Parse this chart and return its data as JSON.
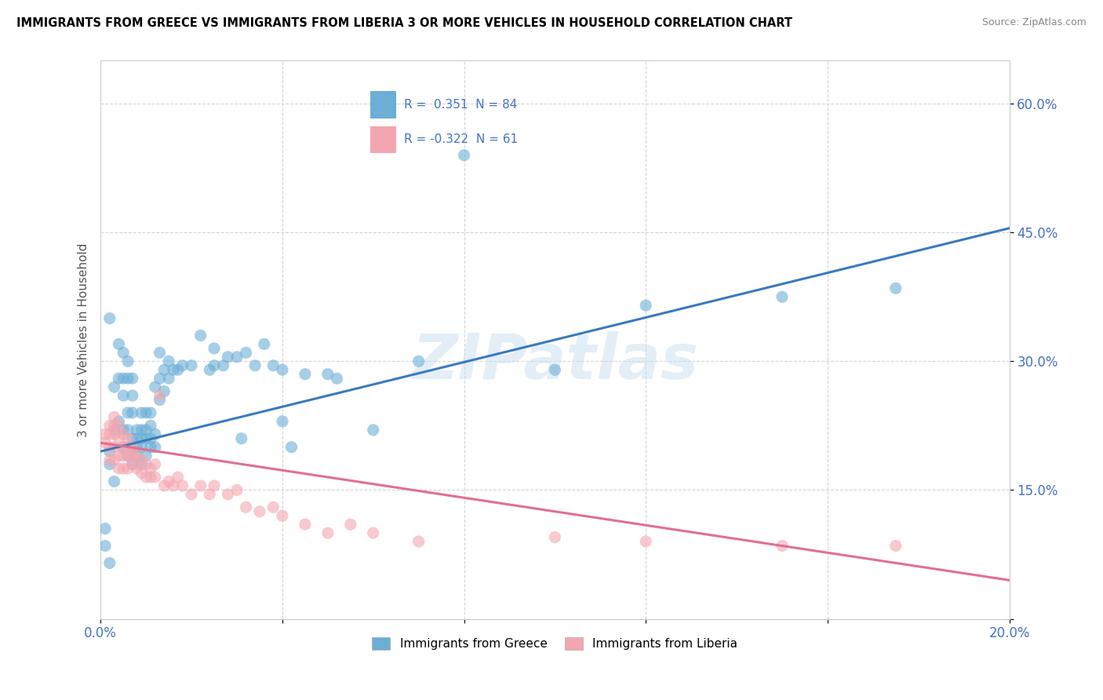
{
  "title": "IMMIGRANTS FROM GREECE VS IMMIGRANTS FROM LIBERIA 3 OR MORE VEHICLES IN HOUSEHOLD CORRELATION CHART",
  "source": "Source: ZipAtlas.com",
  "ylabel": "3 or more Vehicles in Household",
  "xlim": [
    0.0,
    0.2
  ],
  "ylim": [
    0.0,
    0.65
  ],
  "xticks": [
    0.0,
    0.04,
    0.08,
    0.12,
    0.16,
    0.2
  ],
  "xtick_labels": [
    "0.0%",
    "",
    "",
    "",
    "",
    "20.0%"
  ],
  "yticks": [
    0.0,
    0.15,
    0.3,
    0.45,
    0.6
  ],
  "ytick_labels": [
    "",
    "15.0%",
    "30.0%",
    "45.0%",
    "60.0%"
  ],
  "greece_color": "#6baed6",
  "liberia_color": "#f4a6b0",
  "greece_line_color": "#3a7abf",
  "liberia_line_color": "#e07090",
  "R_greece": 0.351,
  "N_greece": 84,
  "R_liberia": -0.322,
  "N_liberia": 61,
  "legend_label_greece": "Immigrants from Greece",
  "legend_label_liberia": "Immigrants from Liberia",
  "watermark": "ZIPatlas",
  "greece_line": [
    0.0,
    0.195,
    0.2,
    0.455
  ],
  "liberia_line": [
    0.0,
    0.205,
    0.2,
    0.045
  ],
  "greece_scatter": [
    [
      0.001,
      0.085
    ],
    [
      0.001,
      0.105
    ],
    [
      0.002,
      0.065
    ],
    [
      0.002,
      0.195
    ],
    [
      0.002,
      0.35
    ],
    [
      0.003,
      0.22
    ],
    [
      0.003,
      0.27
    ],
    [
      0.004,
      0.23
    ],
    [
      0.004,
      0.28
    ],
    [
      0.004,
      0.32
    ],
    [
      0.005,
      0.2
    ],
    [
      0.005,
      0.22
    ],
    [
      0.005,
      0.26
    ],
    [
      0.005,
      0.28
    ],
    [
      0.005,
      0.31
    ],
    [
      0.006,
      0.19
    ],
    [
      0.006,
      0.22
    ],
    [
      0.006,
      0.24
    ],
    [
      0.006,
      0.28
    ],
    [
      0.006,
      0.3
    ],
    [
      0.007,
      0.18
    ],
    [
      0.007,
      0.2
    ],
    [
      0.007,
      0.21
    ],
    [
      0.007,
      0.24
    ],
    [
      0.007,
      0.26
    ],
    [
      0.007,
      0.28
    ],
    [
      0.008,
      0.19
    ],
    [
      0.008,
      0.2
    ],
    [
      0.008,
      0.21
    ],
    [
      0.008,
      0.22
    ],
    [
      0.009,
      0.18
    ],
    [
      0.009,
      0.2
    ],
    [
      0.009,
      0.21
    ],
    [
      0.009,
      0.22
    ],
    [
      0.009,
      0.24
    ],
    [
      0.01,
      0.19
    ],
    [
      0.01,
      0.21
    ],
    [
      0.01,
      0.22
    ],
    [
      0.01,
      0.24
    ],
    [
      0.011,
      0.2
    ],
    [
      0.011,
      0.21
    ],
    [
      0.011,
      0.225
    ],
    [
      0.011,
      0.24
    ],
    [
      0.012,
      0.2
    ],
    [
      0.012,
      0.215
    ],
    [
      0.012,
      0.27
    ],
    [
      0.013,
      0.255
    ],
    [
      0.013,
      0.28
    ],
    [
      0.013,
      0.31
    ],
    [
      0.014,
      0.265
    ],
    [
      0.014,
      0.29
    ],
    [
      0.015,
      0.28
    ],
    [
      0.015,
      0.3
    ],
    [
      0.016,
      0.29
    ],
    [
      0.017,
      0.29
    ],
    [
      0.018,
      0.295
    ],
    [
      0.02,
      0.295
    ],
    [
      0.022,
      0.33
    ],
    [
      0.024,
      0.29
    ],
    [
      0.025,
      0.295
    ],
    [
      0.025,
      0.315
    ],
    [
      0.027,
      0.295
    ],
    [
      0.028,
      0.305
    ],
    [
      0.03,
      0.305
    ],
    [
      0.031,
      0.21
    ],
    [
      0.032,
      0.31
    ],
    [
      0.034,
      0.295
    ],
    [
      0.036,
      0.32
    ],
    [
      0.038,
      0.295
    ],
    [
      0.04,
      0.23
    ],
    [
      0.04,
      0.29
    ],
    [
      0.042,
      0.2
    ],
    [
      0.045,
      0.285
    ],
    [
      0.05,
      0.285
    ],
    [
      0.052,
      0.28
    ],
    [
      0.06,
      0.22
    ],
    [
      0.07,
      0.3
    ],
    [
      0.08,
      0.54
    ],
    [
      0.1,
      0.29
    ],
    [
      0.12,
      0.365
    ],
    [
      0.15,
      0.375
    ],
    [
      0.175,
      0.385
    ],
    [
      0.002,
      0.18
    ],
    [
      0.003,
      0.16
    ]
  ],
  "liberia_scatter": [
    [
      0.001,
      0.205
    ],
    [
      0.001,
      0.215
    ],
    [
      0.002,
      0.185
    ],
    [
      0.002,
      0.2
    ],
    [
      0.002,
      0.215
    ],
    [
      0.002,
      0.225
    ],
    [
      0.003,
      0.185
    ],
    [
      0.003,
      0.2
    ],
    [
      0.003,
      0.215
    ],
    [
      0.003,
      0.225
    ],
    [
      0.003,
      0.235
    ],
    [
      0.004,
      0.175
    ],
    [
      0.004,
      0.19
    ],
    [
      0.004,
      0.21
    ],
    [
      0.004,
      0.225
    ],
    [
      0.005,
      0.175
    ],
    [
      0.005,
      0.19
    ],
    [
      0.005,
      0.2
    ],
    [
      0.005,
      0.215
    ],
    [
      0.006,
      0.175
    ],
    [
      0.006,
      0.19
    ],
    [
      0.006,
      0.2
    ],
    [
      0.006,
      0.21
    ],
    [
      0.007,
      0.18
    ],
    [
      0.007,
      0.19
    ],
    [
      0.007,
      0.2
    ],
    [
      0.008,
      0.175
    ],
    [
      0.008,
      0.19
    ],
    [
      0.009,
      0.17
    ],
    [
      0.009,
      0.185
    ],
    [
      0.01,
      0.165
    ],
    [
      0.01,
      0.18
    ],
    [
      0.011,
      0.165
    ],
    [
      0.011,
      0.175
    ],
    [
      0.012,
      0.165
    ],
    [
      0.012,
      0.18
    ],
    [
      0.013,
      0.26
    ],
    [
      0.014,
      0.155
    ],
    [
      0.015,
      0.16
    ],
    [
      0.016,
      0.155
    ],
    [
      0.017,
      0.165
    ],
    [
      0.018,
      0.155
    ],
    [
      0.02,
      0.145
    ],
    [
      0.022,
      0.155
    ],
    [
      0.024,
      0.145
    ],
    [
      0.025,
      0.155
    ],
    [
      0.028,
      0.145
    ],
    [
      0.03,
      0.15
    ],
    [
      0.032,
      0.13
    ],
    [
      0.035,
      0.125
    ],
    [
      0.038,
      0.13
    ],
    [
      0.04,
      0.12
    ],
    [
      0.045,
      0.11
    ],
    [
      0.05,
      0.1
    ],
    [
      0.055,
      0.11
    ],
    [
      0.06,
      0.1
    ],
    [
      0.07,
      0.09
    ],
    [
      0.1,
      0.095
    ],
    [
      0.12,
      0.09
    ],
    [
      0.15,
      0.085
    ],
    [
      0.175,
      0.085
    ]
  ]
}
